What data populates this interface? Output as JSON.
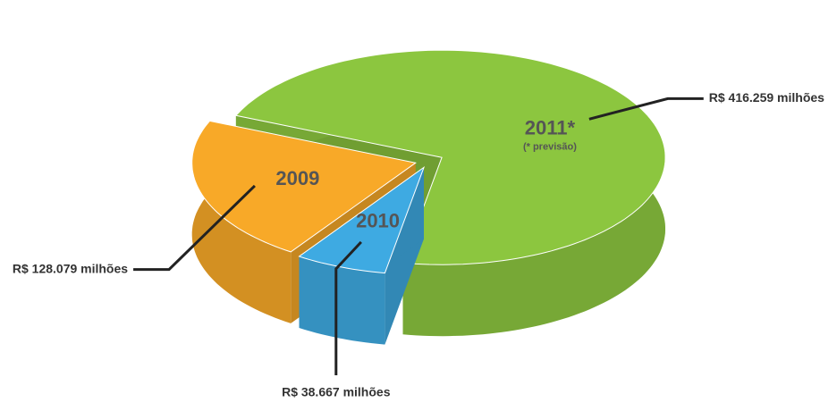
{
  "chart_data": {
    "type": "pie",
    "categories": [
      "2011*",
      "2010",
      "2009"
    ],
    "values": [
      416259,
      38667,
      128079
    ],
    "value_labels": [
      "R$ 416.259 milhões",
      "R$ 38.667 milhões",
      "R$ 128.079 milhões"
    ],
    "colors": [
      "#8cc63f",
      "#3eaae2",
      "#f8a928"
    ],
    "annotations": [
      "(* previsão)"
    ]
  }
}
